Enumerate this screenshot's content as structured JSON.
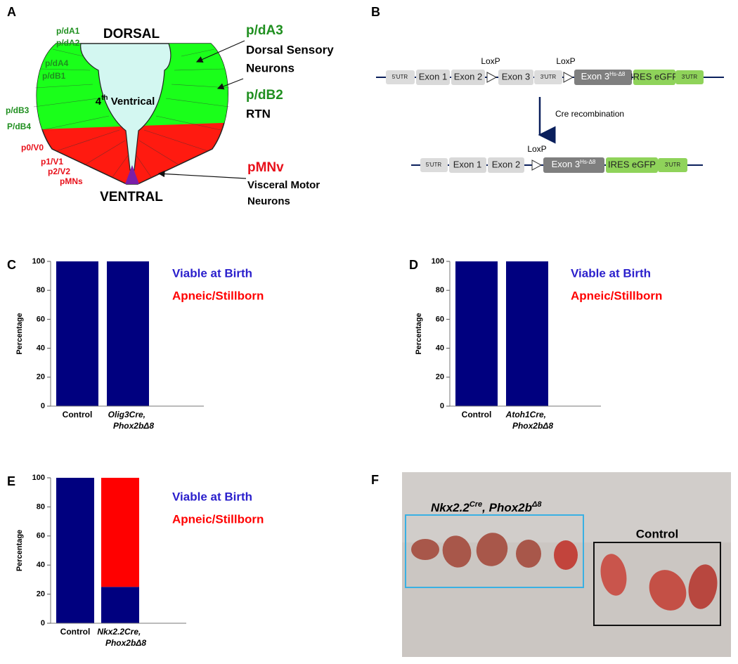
{
  "panel_a": {
    "letter": "A",
    "dorsal": "DORSAL",
    "ventral": "VENTRAL",
    "ventricle": {
      "base": "4",
      "sup": "th",
      "rest": " Ventrical"
    },
    "green_labels": [
      "p/dA1",
      "p/dA2",
      "p/dA4",
      "p/dB1",
      "p/dB3",
      "P/dB4"
    ],
    "red_labels": [
      "p0/V0",
      "p1/V1",
      "p2/V2",
      "pMNs"
    ],
    "callouts": [
      {
        "title": "p/dA3",
        "lines": [
          "Dorsal Sensory",
          "Neurons"
        ]
      },
      {
        "title": "p/dB2",
        "lines": [
          "RTN"
        ]
      },
      {
        "title": "pMNv",
        "lines": [
          "Visceral Motor",
          "Neurons"
        ]
      }
    ]
  },
  "panel_b": {
    "letter": "B",
    "top_row": {
      "loxp": [
        "LoxP",
        "LoxP"
      ],
      "utr5": "5'UTR",
      "exon1": "Exon 1",
      "exon2": "Exon 2",
      "exon3": "Exon 3",
      "utr3": "3'UTR",
      "exon3hs": {
        "base": "Exon 3",
        "sup": "Hs-Δ8"
      },
      "ires": "IRES eGFP",
      "utr3b": "3'UTR"
    },
    "arrow_label": "Cre recombination",
    "bottom_row": {
      "loxp": "LoxP",
      "utr5": "5'UTR",
      "exon1": "Exon 1",
      "exon2": "Exon 2",
      "exon3hs": {
        "base": "Exon 3",
        "sup": "Hs-Δ8"
      },
      "ires": "IRES eGFP",
      "utr3": "3'UTR"
    }
  },
  "panel_f": {
    "letter": "F",
    "mutant_label": {
      "a": "Nkx2.2",
      "a_sup": "Cre",
      "b": ", Phox2b",
      "b_sup": "Δ8"
    },
    "control_label": "Control"
  },
  "chart_data": [
    {
      "type": "bar",
      "stacked": true,
      "letter": "C",
      "ylabel": "Percentage",
      "categories": [
        "Control",
        "Olig3Cre, Phox2bΔ8"
      ],
      "series": [
        {
          "name": "Viable at Birth",
          "color": "#00007f",
          "values": [
            100,
            100
          ]
        },
        {
          "name": "Apneic/Stillborn",
          "color": "#ff0000",
          "values": [
            0,
            0
          ]
        }
      ],
      "ylim": [
        0,
        100
      ],
      "yticks": [
        0,
        20,
        40,
        60,
        80,
        100
      ]
    },
    {
      "type": "bar",
      "stacked": true,
      "letter": "D",
      "ylabel": "Percentage",
      "categories": [
        "Control",
        "Atoh1Cre, Phox2bΔ8"
      ],
      "series": [
        {
          "name": "Viable at Birth",
          "color": "#00007f",
          "values": [
            100,
            100
          ]
        },
        {
          "name": "Apneic/Stillborn",
          "color": "#ff0000",
          "values": [
            0,
            0
          ]
        }
      ],
      "ylim": [
        0,
        100
      ],
      "yticks": [
        0,
        20,
        40,
        60,
        80,
        100
      ]
    },
    {
      "type": "bar",
      "stacked": true,
      "letter": "E",
      "ylabel": "Percentage",
      "categories": [
        "Control",
        "Nkx2.2Cre, Phox2bΔ8"
      ],
      "series": [
        {
          "name": "Viable at Birth",
          "color": "#00007f",
          "values": [
            100,
            25
          ]
        },
        {
          "name": "Apneic/Stillborn",
          "color": "#ff0000",
          "values": [
            0,
            75
          ]
        }
      ],
      "ylim": [
        0,
        100
      ],
      "yticks": [
        0,
        20,
        40,
        60,
        80,
        100
      ]
    }
  ]
}
